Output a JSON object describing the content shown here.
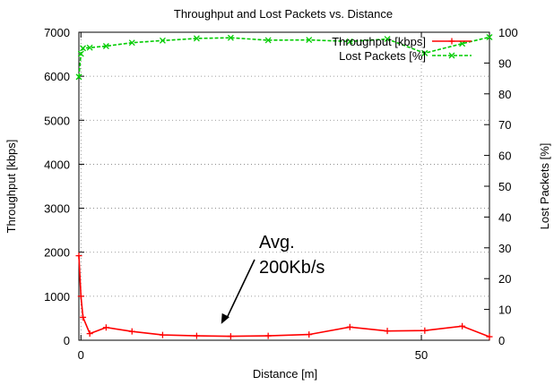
{
  "chart_data": {
    "type": "line",
    "title": "Throughput and Lost Packets vs. Distance",
    "xlabel": "Distance [m]",
    "ylabel": "Throughput [kbps]",
    "y2label": "Lost Packets [%]",
    "xlim": [
      -0.3,
      60
    ],
    "ylim": [
      0,
      7000
    ],
    "y2lim": [
      0,
      100
    ],
    "x_ticks": [
      "0",
      "50"
    ],
    "x_tick_values": [
      0,
      50
    ],
    "y_ticks": [
      "0",
      "1000",
      "2000",
      "3000",
      "4000",
      "5000",
      "6000",
      "7000"
    ],
    "y_tick_values": [
      0,
      1000,
      2000,
      3000,
      4000,
      5000,
      6000,
      7000
    ],
    "y2_ticks": [
      "0",
      "10",
      "20",
      "30",
      "40",
      "50",
      "60",
      "70",
      "80",
      "90",
      "100"
    ],
    "y2_tick_values": [
      0,
      10,
      20,
      30,
      40,
      50,
      60,
      70,
      80,
      90,
      100
    ],
    "grid": true,
    "legend_position": "top-right",
    "series": [
      {
        "name": "Throughput [kbps]",
        "axis": "left",
        "color": "#ff0000",
        "style": "solid",
        "marker": "+",
        "x": [
          -0.3,
          0,
          0.3,
          1.3,
          3.7,
          7.5,
          12,
          17,
          22,
          27.5,
          33.5,
          39.5,
          45,
          50.5,
          56,
          60
        ],
        "y": [
          1920,
          1000,
          520,
          150,
          290,
          200,
          120,
          100,
          90,
          100,
          130,
          300,
          210,
          220,
          320,
          80
        ]
      },
      {
        "name": "Lost Packets [%]",
        "axis": "right",
        "color": "#00cc00",
        "style": "dashed",
        "marker": "x",
        "x": [
          -0.3,
          0,
          0.3,
          1.3,
          3.7,
          7.5,
          12,
          17,
          22,
          27.5,
          33.5,
          39.5,
          45,
          50.5,
          56,
          60
        ],
        "y": [
          85.5,
          93,
          94.8,
          95,
          95.5,
          96.6,
          97.3,
          98,
          98.2,
          97.4,
          97.5,
          97,
          97.8,
          93.2,
          96.3,
          98.4
        ]
      }
    ],
    "annotation": {
      "text_lines": [
        "Avg.",
        "200Kb/s"
      ],
      "arrow_to": {
        "x": 20.6,
        "y": 370
      }
    }
  }
}
